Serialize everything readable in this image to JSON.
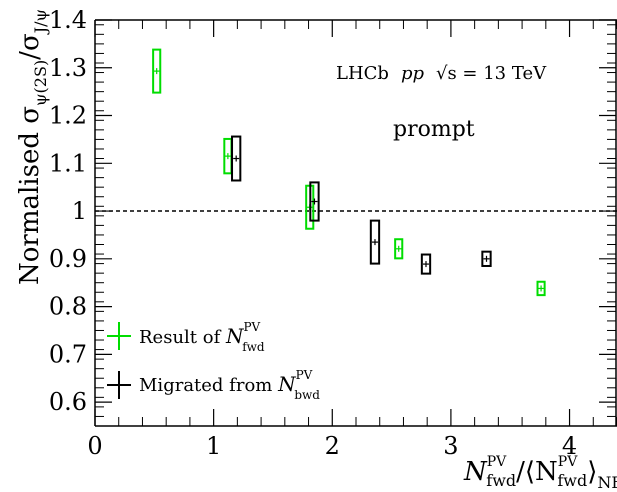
{
  "chart_data": {
    "type": "scatter",
    "xlim": [
      0,
      4.4
    ],
    "ylim": [
      0.55,
      1.4
    ],
    "x_ticks": [
      "0",
      "1",
      "2",
      "3",
      "4"
    ],
    "y_ticks": [
      "0.6",
      "0.7",
      "0.8",
      "0.9",
      "1",
      "1.1",
      "1.2",
      "1.3",
      "1.4"
    ],
    "reference_line_y": 1.0,
    "ylabel": {
      "main": "Normalised  σ",
      "sub1": "ψ(2S)",
      "slash": "/σ",
      "sub2": "J/ψ"
    },
    "xlabel": {
      "n1": "N",
      "n1_sup": "PV",
      "n1_sub": "fwd",
      "mid": "/⟨N",
      "n2_sup": "PV",
      "n2_sub": "fwd",
      "close": "⟩",
      "close_sub": "NB"
    },
    "annotations": {
      "experiment": "LHCb",
      "system": "pp",
      "energy": "√s = 13 TeV",
      "category": "prompt"
    },
    "series": [
      {
        "name": "Result of N^PV_fwd",
        "legend": {
          "text": "Result of ",
          "sym": "N",
          "sup": "PV",
          "sub": "fwd"
        },
        "color": "#00dd00",
        "points": [
          {
            "x": 0.52,
            "y": 1.293,
            "xerr": 0.03,
            "yerr": 0.045
          },
          {
            "x": 1.12,
            "y": 1.115,
            "xerr": 0.03,
            "yerr": 0.036
          },
          {
            "x": 1.81,
            "y": 1.008,
            "xerr": 0.03,
            "yerr": 0.045
          },
          {
            "x": 2.56,
            "y": 0.921,
            "xerr": 0.03,
            "yerr": 0.02
          },
          {
            "x": 3.76,
            "y": 0.838,
            "xerr": 0.03,
            "yerr": 0.014
          }
        ]
      },
      {
        "name": "Migrated from N^PV_bwd",
        "legend": {
          "text": "Migrated from ",
          "sym": "N",
          "sup": "PV",
          "sub": "bwd"
        },
        "color": "#000000",
        "points": [
          {
            "x": 1.19,
            "y": 1.11,
            "xerr": 0.035,
            "yerr": 0.046
          },
          {
            "x": 1.85,
            "y": 1.02,
            "xerr": 0.035,
            "yerr": 0.04
          },
          {
            "x": 2.36,
            "y": 0.935,
            "xerr": 0.035,
            "yerr": 0.045
          },
          {
            "x": 2.79,
            "y": 0.889,
            "xerr": 0.035,
            "yerr": 0.02
          },
          {
            "x": 3.3,
            "y": 0.9,
            "xerr": 0.035,
            "yerr": 0.015
          }
        ]
      }
    ]
  }
}
